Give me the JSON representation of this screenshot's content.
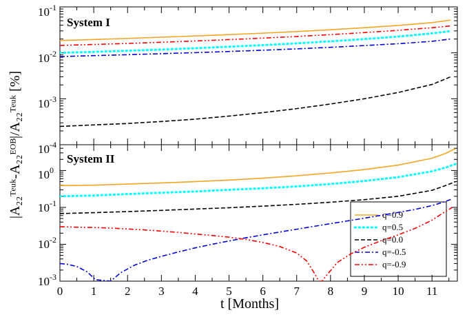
{
  "chart_data": [
    {
      "type": "line",
      "title": "System I",
      "yscale": "log",
      "xlim": [
        0,
        11.75
      ],
      "ylim": [
        0.0001,
        0.1
      ],
      "series": [
        {
          "label": "q=0.9",
          "color": "#f5a623",
          "style": "solid",
          "x": [
            0,
            1,
            2,
            3,
            4,
            5,
            6,
            7,
            8,
            9,
            10,
            11,
            11.55
          ],
          "y": [
            0.0185,
            0.0195,
            0.0206,
            0.0219,
            0.0233,
            0.025,
            0.0268,
            0.029,
            0.0318,
            0.0352,
            0.0395,
            0.0455,
            0.0515
          ]
        },
        {
          "label": "q=0.5",
          "color": "#00ffff",
          "style": "dotted",
          "x": [
            0,
            1,
            2,
            3,
            4,
            5,
            6,
            7,
            8,
            9,
            10,
            11,
            11.55
          ],
          "y": [
            0.01,
            0.0105,
            0.0111,
            0.0118,
            0.0126,
            0.0136,
            0.0147,
            0.0161,
            0.0178,
            0.0199,
            0.0226,
            0.0265,
            0.0298
          ]
        },
        {
          "label": "q=0.0",
          "color": "#000000",
          "style": "dashed",
          "x": [
            0,
            1,
            2,
            3,
            4,
            5,
            6,
            7,
            8,
            9,
            10,
            11,
            11.55
          ],
          "y": [
            0.00025,
            0.00027,
            0.00029,
            0.00032,
            0.00036,
            0.00042,
            0.0005,
            0.00061,
            0.00077,
            0.001,
            0.00137,
            0.00205,
            0.003
          ]
        },
        {
          "label": "q=-0.5",
          "color": "#0000dd",
          "style": "dashdot",
          "x": [
            0,
            1,
            2,
            3,
            4,
            5,
            6,
            7,
            8,
            9,
            10,
            11,
            11.55
          ],
          "y": [
            0.0083,
            0.0087,
            0.0091,
            0.0096,
            0.0101,
            0.0107,
            0.0114,
            0.0122,
            0.0132,
            0.0144,
            0.0158,
            0.0178,
            0.02
          ]
        },
        {
          "label": "q=-0.9",
          "color": "#ff0000",
          "style": "dashdotdot",
          "x": [
            0,
            1,
            2,
            3,
            4,
            5,
            6,
            7,
            8,
            9,
            10,
            11,
            11.55
          ],
          "y": [
            0.0145,
            0.0152,
            0.016,
            0.017,
            0.0181,
            0.0194,
            0.0209,
            0.0227,
            0.0249,
            0.0276,
            0.0309,
            0.0352,
            0.0385
          ]
        }
      ]
    },
    {
      "type": "line",
      "title": "System II",
      "yscale": "log",
      "xlim": [
        0,
        11.75
      ],
      "ylim": [
        0.001,
        5
      ],
      "series": [
        {
          "label": "q=0.9",
          "color": "#f5a623",
          "style": "solid",
          "x": [
            0,
            1,
            2,
            3,
            4,
            5,
            6,
            7,
            8,
            9,
            10,
            11,
            11.4,
            11.7
          ],
          "y": [
            0.39,
            0.4,
            0.43,
            0.46,
            0.5,
            0.55,
            0.62,
            0.72,
            0.86,
            1.06,
            1.4,
            2.15,
            2.9,
            3.9
          ]
        },
        {
          "label": "q=0.5",
          "color": "#00ffff",
          "style": "dotted",
          "x": [
            0,
            1,
            2,
            3,
            4,
            5,
            6,
            7,
            8,
            9,
            10,
            11,
            11.4,
            11.7
          ],
          "y": [
            0.2,
            0.21,
            0.23,
            0.25,
            0.27,
            0.3,
            0.33,
            0.37,
            0.43,
            0.52,
            0.66,
            0.95,
            1.2,
            1.5
          ]
        },
        {
          "label": "q=0.0",
          "color": "#000000",
          "style": "dashed",
          "x": [
            0,
            1,
            2,
            3,
            4,
            5,
            6,
            7,
            8,
            9,
            10,
            11,
            11.4,
            11.7
          ],
          "y": [
            0.068,
            0.072,
            0.077,
            0.083,
            0.09,
            0.098,
            0.108,
            0.121,
            0.138,
            0.162,
            0.2,
            0.29,
            0.39,
            0.5
          ]
        },
        {
          "label": "q=-0.5",
          "color": "#0000dd",
          "style": "dashdot",
          "x": [
            0,
            0.2,
            0.5,
            0.8,
            1.05,
            1.5,
            1.8,
            2.2,
            2.6,
            3,
            3.5,
            4,
            4.5,
            5,
            5.5,
            6,
            6.5,
            7,
            7.5,
            8,
            8.5,
            9,
            9.5,
            10,
            10.5,
            11,
            11.3,
            11.6
          ],
          "y": [
            0.003,
            0.0029,
            0.0025,
            0.0018,
            0.0011,
            0.001,
            0.0017,
            0.0027,
            0.0037,
            0.0047,
            0.0062,
            0.008,
            0.01,
            0.0123,
            0.015,
            0.018,
            0.0215,
            0.0256,
            0.0305,
            0.0362,
            0.043,
            0.051,
            0.061,
            0.073,
            0.088,
            0.112,
            0.135,
            0.17
          ]
        },
        {
          "label": "q=-0.9",
          "color": "#ff0000",
          "style": "dashdotdot",
          "x": [
            0,
            0.5,
            1,
            1.5,
            2,
            2.5,
            3,
            3.5,
            4,
            4.5,
            5,
            5.5,
            6,
            6.5,
            7,
            7.3,
            7.55,
            7.65,
            7.75,
            7.9,
            8.2,
            8.6,
            9,
            9.5,
            10,
            10.5,
            11,
            11.3,
            11.6
          ],
          "y": [
            0.03,
            0.029,
            0.0285,
            0.0275,
            0.026,
            0.0245,
            0.0228,
            0.021,
            0.019,
            0.0173,
            0.0156,
            0.0135,
            0.0112,
            0.0087,
            0.0058,
            0.0035,
            0.0015,
            0.001,
            0.001,
            0.0015,
            0.0032,
            0.0055,
            0.0083,
            0.0125,
            0.018,
            0.027,
            0.045,
            0.068,
            0.1
          ]
        }
      ]
    }
  ],
  "axes": {
    "x_label": "t [Months]",
    "y_label": "|A₂₂ᵀᵉᵘᵏ-A₂₂ᴱᴼᴮ|/A₂₂ᵀᵉᵘᵏ [%]",
    "x_ticks": [
      "0",
      "1",
      "2",
      "3",
      "4",
      "5",
      "6",
      "7",
      "8",
      "9",
      "10",
      "11"
    ]
  },
  "panel1_ticks": [
    {
      "base": "10",
      "exp": "-1"
    },
    {
      "base": "10",
      "exp": "-2"
    },
    {
      "base": "10",
      "exp": "-3"
    }
  ],
  "panel2_ticks": [
    {
      "base": "10",
      "exp": "-4"
    },
    {
      "base": "10",
      "exp": "0"
    },
    {
      "base": "10",
      "exp": "-1"
    },
    {
      "base": "10",
      "exp": "-2"
    },
    {
      "base": "10",
      "exp": "-3"
    }
  ],
  "legend": [
    "q=0.9",
    "q=0.5",
    "q=0.0",
    "q=-0.5",
    "q=-0.9"
  ]
}
